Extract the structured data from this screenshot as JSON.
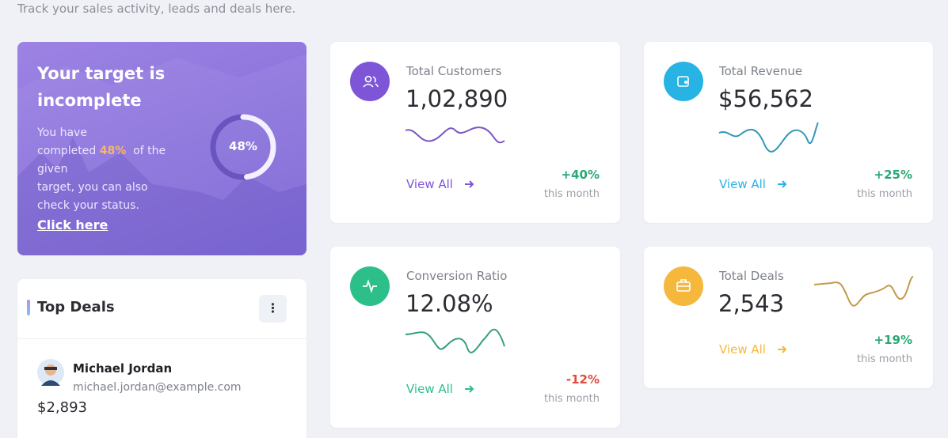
{
  "header": {
    "subtitle": "Track your sales activity, leads and deals here."
  },
  "target_card": {
    "title_line1": "Your target is",
    "title_line2": "incomplete",
    "text_line1": "You have",
    "text_line2_start": "completed",
    "completed_percent": "48%",
    "text_line2_end": "of the",
    "text_line3": "given",
    "text_line4": "target, you can also",
    "text_line5": "check your status.",
    "link": "Click here",
    "progress": {
      "value": 48,
      "label": "48%"
    }
  },
  "top_deals": {
    "title": "Top Deals",
    "deals": [
      {
        "name": "Michael Jordan",
        "email": "michael.jordan@example.com",
        "amount": "$2,893"
      }
    ]
  },
  "stats": [
    {
      "label": "Total Customers",
      "value": "1,02,890",
      "link": "View All",
      "change": "+40%",
      "period": "this month"
    },
    {
      "label": "Total Revenue",
      "value": "$56,562",
      "link": "View All",
      "change": "+25%",
      "period": "this month"
    },
    {
      "label": "Conversion Ratio",
      "value": "12.08%",
      "link": "View All",
      "change": "-12%",
      "period": "this month"
    },
    {
      "label": "Total Deals",
      "value": "2,543",
      "link": "View All",
      "change": "+19%",
      "period": "this month"
    }
  ]
}
